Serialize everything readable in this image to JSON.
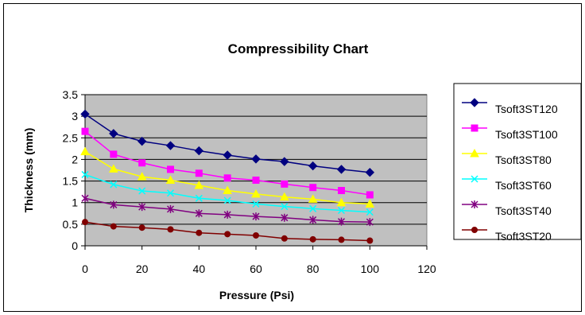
{
  "chart_data": {
    "type": "line",
    "title": "Compressibility Chart",
    "xlabel": "Pressure (Psi)",
    "ylabel": "Thickness (mm)",
    "xlim": [
      0,
      120
    ],
    "ylim": [
      0,
      3.5
    ],
    "x_ticks": [
      "0",
      "20",
      "40",
      "60",
      "80",
      "100",
      "120"
    ],
    "y_ticks": [
      "0",
      "0.5",
      "1",
      "1.5",
      "2",
      "2.5",
      "3",
      "3.5"
    ],
    "grid": "horizontal",
    "plot_background": "#c0c0c0",
    "legend_position": "right",
    "x": [
      0,
      10,
      20,
      30,
      40,
      50,
      60,
      70,
      80,
      90,
      100
    ],
    "series": [
      {
        "name": "Tsoft3ST120",
        "color": "#000080",
        "marker": "diamond",
        "values": [
          3.05,
          2.6,
          2.42,
          2.32,
          2.2,
          2.1,
          2.01,
          1.95,
          1.85,
          1.77,
          1.7
        ]
      },
      {
        "name": "Tsoft3ST100",
        "color": "#ff00ff",
        "marker": "square",
        "values": [
          2.65,
          2.12,
          1.92,
          1.77,
          1.68,
          1.57,
          1.52,
          1.43,
          1.35,
          1.28,
          1.18
        ]
      },
      {
        "name": "Tsoft3ST80",
        "color": "#ffff00",
        "marker": "triangle",
        "values": [
          2.18,
          1.78,
          1.6,
          1.52,
          1.4,
          1.28,
          1.2,
          1.13,
          1.08,
          1.0,
          0.97
        ]
      },
      {
        "name": "Tsoft3ST60",
        "color": "#00ffff",
        "marker": "x",
        "values": [
          1.65,
          1.42,
          1.27,
          1.22,
          1.1,
          1.05,
          0.97,
          0.91,
          0.86,
          0.82,
          0.78
        ]
      },
      {
        "name": "Tsoft3ST40",
        "color": "#800080",
        "marker": "star",
        "values": [
          1.1,
          0.95,
          0.9,
          0.85,
          0.75,
          0.72,
          0.68,
          0.65,
          0.6,
          0.56,
          0.55
        ]
      },
      {
        "name": "Tsoft3ST20",
        "color": "#800000",
        "marker": "circle",
        "values": [
          0.55,
          0.45,
          0.42,
          0.38,
          0.3,
          0.27,
          0.24,
          0.17,
          0.15,
          0.14,
          0.12
        ]
      }
    ]
  }
}
